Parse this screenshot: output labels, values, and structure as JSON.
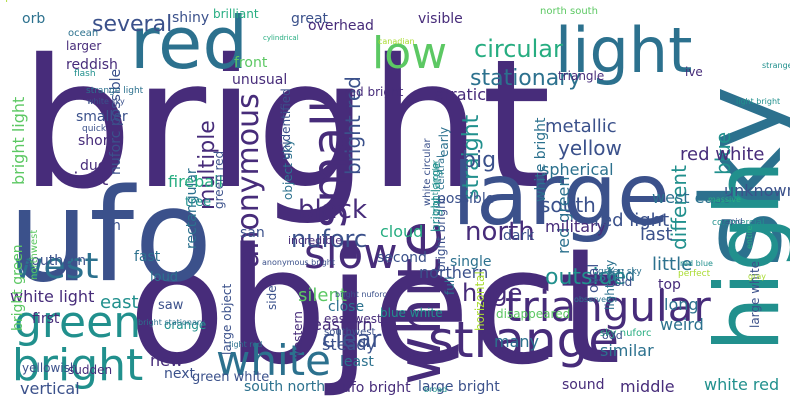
{
  "palette": {
    "c1": "#440154",
    "c2": "#472c7a",
    "c3": "#3b518b",
    "c4": "#2c718e",
    "c5": "#21908d",
    "c6": "#27ad81",
    "c7": "#5cc863",
    "c8": "#aadc32",
    "c9": "#fde725"
  },
  "words": [
    {
      "text": "bright",
      "c": "c2"
    },
    {
      "text": "object",
      "c": "c2"
    },
    {
      "text": "ufo",
      "c": "c3"
    },
    {
      "text": "large",
      "c": "c3"
    },
    {
      "text": "sky",
      "c": "c4"
    },
    {
      "text": "light",
      "c": "c4"
    },
    {
      "text": "red",
      "c": "c4"
    },
    {
      "text": "high",
      "c": "c5"
    },
    {
      "text": "white",
      "c": "c2"
    },
    {
      "text": "bright",
      "c": "c5"
    },
    {
      "text": "strange",
      "c": "c2"
    },
    {
      "text": "white",
      "c": "c4"
    },
    {
      "text": "small",
      "c": "c2"
    },
    {
      "text": "green",
      "c": "c5"
    },
    {
      "text": "triangular",
      "c": "c2"
    },
    {
      "text": "low",
      "c": "c7"
    },
    {
      "text": "west",
      "c": "c4"
    },
    {
      "text": "slow",
      "c": "c2"
    },
    {
      "text": "anonymous",
      "c": "c2"
    },
    {
      "text": "black",
      "c": "c2"
    },
    {
      "text": "circular",
      "c": "c6"
    },
    {
      "text": "stationary",
      "c": "c4"
    },
    {
      "text": "north",
      "c": "c2"
    },
    {
      "text": "nuforc",
      "c": "c3"
    },
    {
      "text": "huge",
      "c": "c2"
    },
    {
      "text": "several",
      "c": "c3"
    },
    {
      "text": "straight",
      "c": "c5"
    },
    {
      "text": "multiple",
      "c": "c2"
    },
    {
      "text": "bright red",
      "c": "c3"
    },
    {
      "text": "yellow",
      "c": "c3"
    },
    {
      "text": "blue",
      "c": "c5"
    },
    {
      "text": "big",
      "c": "c3"
    },
    {
      "text": "outside",
      "c": "c5"
    },
    {
      "text": "south",
      "c": "c3"
    },
    {
      "text": "different",
      "c": "c5"
    },
    {
      "text": "clear",
      "c": "c3"
    },
    {
      "text": "silent",
      "c": "c7"
    },
    {
      "text": "bright light",
      "c": "c7"
    },
    {
      "text": "erratic",
      "c": "c2"
    },
    {
      "text": "metallic",
      "c": "c3"
    },
    {
      "text": "spherical",
      "c": "c4"
    },
    {
      "text": "rectangular",
      "c": "c4"
    },
    {
      "text": "red green",
      "c": "c4"
    },
    {
      "text": "white bright",
      "c": "c4"
    },
    {
      "text": "red white",
      "c": "c2"
    },
    {
      "text": "unknown",
      "c": "c3"
    },
    {
      "text": "military",
      "c": "c2"
    },
    {
      "text": "right",
      "c": "c2"
    },
    {
      "text": "east",
      "c": "c5"
    },
    {
      "text": "white light",
      "c": "c2"
    },
    {
      "text": "southern",
      "c": "c3"
    },
    {
      "text": "bright green",
      "c": "c7"
    },
    {
      "text": "red light",
      "c": "c3"
    },
    {
      "text": "west east",
      "c": "c4"
    },
    {
      "text": "last",
      "c": "c3"
    },
    {
      "text": "little",
      "c": "c4"
    },
    {
      "text": "northern",
      "c": "c3"
    },
    {
      "text": "solid",
      "c": "c4"
    },
    {
      "text": "oval",
      "c": "c3"
    },
    {
      "text": "top",
      "c": "c2"
    },
    {
      "text": "long",
      "c": "c4"
    },
    {
      "text": "weird",
      "c": "c4"
    },
    {
      "text": "first",
      "c": "c2"
    },
    {
      "text": "new",
      "c": "c2"
    },
    {
      "text": "vertical",
      "c": "c3"
    },
    {
      "text": "eastern",
      "c": "c2"
    },
    {
      "text": "steady",
      "c": "c3"
    },
    {
      "text": "many",
      "c": "c4"
    },
    {
      "text": "close",
      "c": "c4"
    },
    {
      "text": "least",
      "c": "c4"
    },
    {
      "text": "similar",
      "c": "c4"
    },
    {
      "text": "next",
      "c": "c3"
    },
    {
      "text": "middle",
      "c": "c2"
    },
    {
      "text": "sound",
      "c": "c2"
    },
    {
      "text": "white red",
      "c": "c5"
    },
    {
      "text": "large bright",
      "c": "c3"
    },
    {
      "text": "south north",
      "c": "c4"
    },
    {
      "text": "ufo bright",
      "c": "c2"
    },
    {
      "text": "green white",
      "c": "c3"
    },
    {
      "text": "yellowish",
      "c": "c3"
    },
    {
      "text": "sudden",
      "c": "c2"
    },
    {
      "text": "fireball",
      "c": "c6"
    },
    {
      "text": "cloud",
      "c": "c6"
    },
    {
      "text": "dark",
      "c": "c3"
    },
    {
      "text": "possible",
      "c": "c3"
    },
    {
      "text": "second",
      "c": "c3"
    },
    {
      "text": "single",
      "c": "c4"
    },
    {
      "text": "visible",
      "c": "c2"
    },
    {
      "text": "great",
      "c": "c3"
    },
    {
      "text": "overhead",
      "c": "c2"
    },
    {
      "text": "shiny",
      "c": "c3"
    },
    {
      "text": "brilliant",
      "c": "c6"
    },
    {
      "text": "orb",
      "c": "c4"
    },
    {
      "text": "larger",
      "c": "c2"
    },
    {
      "text": "reddish",
      "c": "c2"
    },
    {
      "text": "front",
      "c": "c7"
    },
    {
      "text": "unusual",
      "c": "c2"
    },
    {
      "text": "noticed",
      "c": "c2"
    },
    {
      "text": "smaller",
      "c": "c3"
    },
    {
      "text": "short",
      "c": "c2"
    },
    {
      "text": "due",
      "c": "c2"
    },
    {
      "text": "ive",
      "c": "c2"
    },
    {
      "text": "early",
      "c": "c4"
    },
    {
      "text": "triangle",
      "c": "c2"
    },
    {
      "text": "red bright",
      "c": "c2"
    },
    {
      "text": "nuforc possible",
      "c": "c3"
    },
    {
      "text": "object sky",
      "c": "c4"
    },
    {
      "text": "unidentified",
      "c": "c3"
    },
    {
      "text": "green red",
      "c": "c3"
    },
    {
      "text": "central",
      "c": "c4"
    },
    {
      "text": "san",
      "c": "c3"
    },
    {
      "text": "fast",
      "c": "c4"
    },
    {
      "text": "loud",
      "c": "c4"
    },
    {
      "text": "tree",
      "c": "c5"
    },
    {
      "text": "side",
      "c": "c3"
    },
    {
      "text": "saw",
      "c": "c3"
    },
    {
      "text": "orange",
      "c": "c5"
    },
    {
      "text": "western",
      "c": "c2"
    },
    {
      "text": "east west",
      "c": "c2"
    },
    {
      "text": "southwest",
      "c": "c3"
    },
    {
      "text": "large object",
      "c": "c3"
    },
    {
      "text": "light sky",
      "c": "c4"
    },
    {
      "text": "sky nuforc",
      "c": "c6"
    },
    {
      "text": "old",
      "c": "c3"
    },
    {
      "text": "odd",
      "c": "c3"
    },
    {
      "text": "blue white",
      "c": "c5"
    },
    {
      "text": "full",
      "c": "c4"
    },
    {
      "text": "bright bright",
      "c": "c3"
    },
    {
      "text": "bright large",
      "c": "c5"
    },
    {
      "text": "incredible",
      "c": "c2"
    },
    {
      "text": "ocean",
      "c": "c4"
    },
    {
      "text": "north south",
      "c": "c7"
    },
    {
      "text": "horizontal",
      "c": "c8"
    },
    {
      "text": "disappeared",
      "c": "c7"
    },
    {
      "text": "large white",
      "c": "c3"
    },
    {
      "text": "n",
      "c": "c3"
    },
    {
      "text": "northwest",
      "c": "c7"
    },
    {
      "text": "white circular",
      "c": "c3"
    },
    {
      "text": "bright circular",
      "c": "c5"
    },
    {
      "text": "anonymous bright",
      "c": "c3"
    },
    {
      "text": "light bright",
      "c": "c5"
    },
    {
      "text": "bright nuforc",
      "c": "c3"
    },
    {
      "text": "canadian",
      "c": "c8"
    },
    {
      "text": "green sky",
      "c": "c4"
    },
    {
      "text": "red blue",
      "c": "c5"
    },
    {
      "text": "perfect",
      "c": "c8"
    },
    {
      "text": "massive",
      "c": "c6"
    },
    {
      "text": "commercial",
      "c": "c5"
    },
    {
      "text": "bright stationary",
      "c": "c4"
    },
    {
      "text": "strange object",
      "c": "c5"
    },
    {
      "text": "flash",
      "c": "c5"
    },
    {
      "text": "white sky",
      "c": "c3"
    },
    {
      "text": "strange light",
      "c": "c4"
    },
    {
      "text": "quick",
      "c": "c3"
    },
    {
      "text": "light red",
      "c": "c4"
    },
    {
      "text": "broad",
      "c": "c5"
    },
    {
      "text": "observed",
      "c": "c4"
    },
    {
      "text": "gray",
      "c": "c8"
    },
    {
      "text": "cylindrical",
      "c": "c6"
    },
    {
      "text": "entire",
      "c": "c6"
    },
    {
      "text": "rapid",
      "c": "c3"
    },
    {
      "text": "sphere",
      "c": "c8"
    }
  ]
}
